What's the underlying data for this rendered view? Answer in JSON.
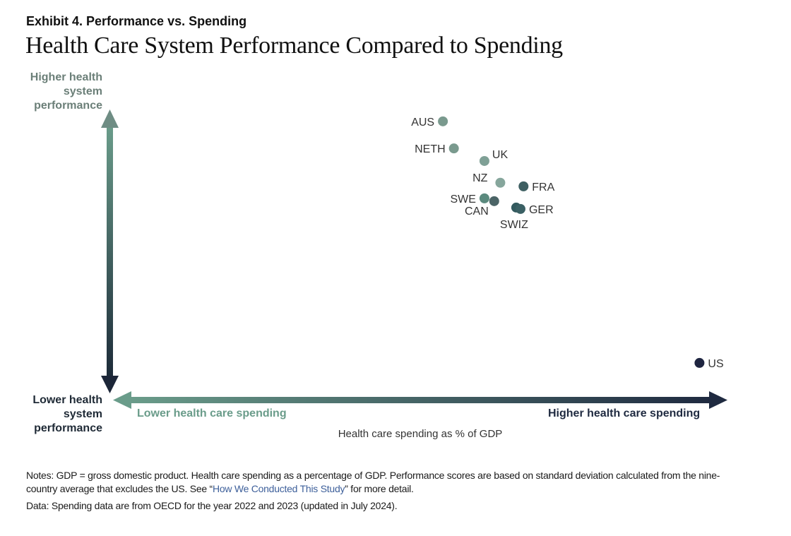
{
  "header": {
    "exhibit": "Exhibit 4. Performance vs. Spending",
    "title": "Health Care System Performance Compared to Spending"
  },
  "chart_data": {
    "type": "scatter",
    "title": "Health Care System Performance Compared to Spending",
    "xlabel": "Health care spending as % of GDP",
    "ylabel": "Health system performance",
    "y_axis_high_label": "Higher health system performance",
    "y_axis_low_label": "Lower health system performance",
    "x_axis_low_label": "Lower health care spending",
    "x_axis_high_label": "Higher health care spending",
    "xlim": [
      0,
      100
    ],
    "ylim": [
      0,
      100
    ],
    "grid": false,
    "points": [
      {
        "label": "AUS",
        "x": 54.0,
        "y": 97.0,
        "color": "#7a9a8e",
        "label_pos": "left"
      },
      {
        "label": "NETH",
        "x": 55.8,
        "y": 87.3,
        "color": "#7a9a8e",
        "label_pos": "left"
      },
      {
        "label": "UK",
        "x": 60.8,
        "y": 82.8,
        "color": "#7fa096",
        "label_pos": "upper-right"
      },
      {
        "label": "NZ",
        "x": 63.4,
        "y": 75.0,
        "color": "#86a69c",
        "label_pos": "upper-left"
      },
      {
        "label": "FRA",
        "x": 67.2,
        "y": 73.7,
        "color": "#3e5f62",
        "label_pos": "right"
      },
      {
        "label": "SWE",
        "x": 60.8,
        "y": 69.4,
        "color": "#5b8a7e",
        "label_pos": "left"
      },
      {
        "label": "CAN",
        "x": 62.4,
        "y": 68.4,
        "color": "#4b6466",
        "label_pos": "lower-left"
      },
      {
        "label": "SWIZ",
        "x": 66.0,
        "y": 66.1,
        "color": "#335a5e",
        "label_pos": "below"
      },
      {
        "label": "GER",
        "x": 66.7,
        "y": 65.6,
        "color": "#3b6064",
        "label_pos": "right"
      },
      {
        "label": "US",
        "x": 96.0,
        "y": 10.4,
        "color": "#1e2540",
        "label_pos": "right"
      }
    ]
  },
  "notes": {
    "text_before_link": "Notes: GDP = gross domestic product. Health care spending as a percentage of GDP. Performance scores are based on standard deviation calculated from the nine-country average that excludes the US. See “",
    "link": "How We Conducted This Study",
    "text_after_link": "” for more detail.",
    "data_source": "Data: Spending data are from OECD for the year 2022 and 2023 (updated in July 2024)."
  },
  "colors": {
    "axis_light": "#6a9c8a",
    "axis_dark": "#1f2a40",
    "link": "#3d5f9a"
  }
}
